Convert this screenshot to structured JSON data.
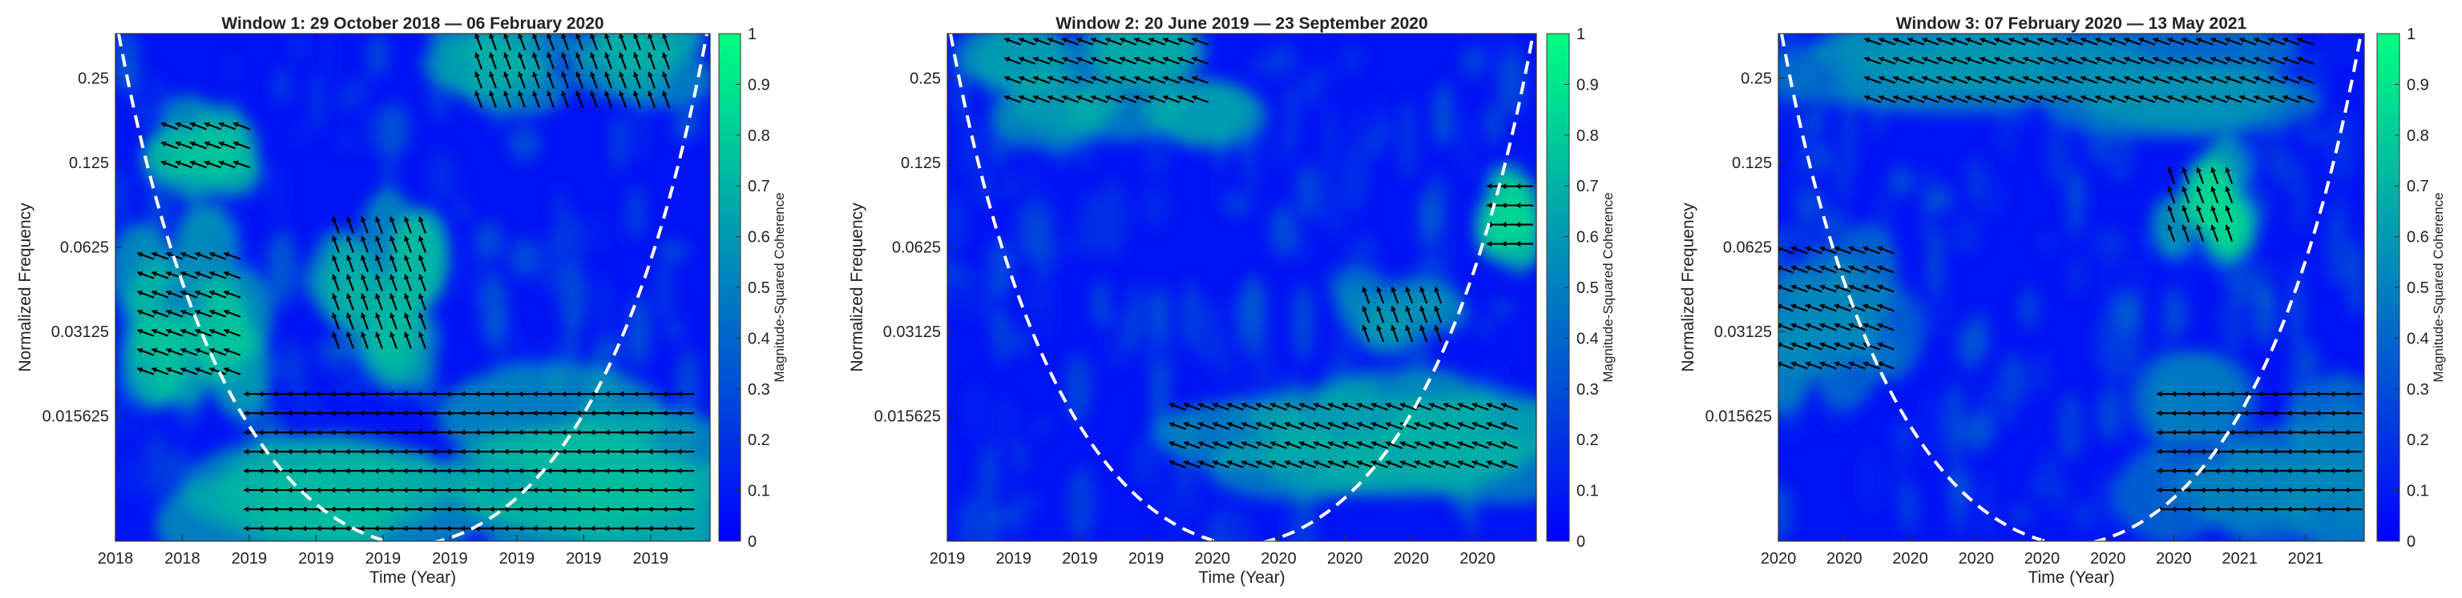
{
  "chart_data": [
    {
      "type": "heatmap",
      "title": "Window 1: 29 October 2018 — 06 February 2020",
      "xlabel": "Time (Year)",
      "ylabel": "Normalized Frequency",
      "x_tick_labels": [
        "2018",
        "2018",
        "2019",
        "2019",
        "2019",
        "2019",
        "2019",
        "2019",
        "2019"
      ],
      "y_tick_labels": [
        "0.25",
        "0.125",
        "0.0625",
        "0.03125",
        "0.015625"
      ],
      "y_tick_values": [
        0.25,
        0.125,
        0.0625,
        0.03125,
        0.015625
      ],
      "ylim": [
        0.0056,
        0.36
      ],
      "colorbar": {
        "label": "Magnitude-Squared Coherence",
        "ticks": [
          "0",
          "0.1",
          "0.2",
          "0.3",
          "0.4",
          "0.5",
          "0.6",
          "0.7",
          "0.8",
          "0.9",
          "1"
        ],
        "range": [
          0,
          1
        ]
      },
      "cone_of_influence": "white dashed",
      "high_coherence_regions": [
        {
          "x": [
            0.04,
            0.22
          ],
          "y": [
            0.022,
            0.062
          ],
          "level": 0.8
        },
        {
          "x": [
            0.36,
            0.52
          ],
          "y": [
            0.028,
            0.08
          ],
          "level": 0.75
        },
        {
          "x": [
            0.22,
            0.96
          ],
          "y": [
            0.0062,
            0.02
          ],
          "level": 0.75
        },
        {
          "x": [
            0.08,
            0.22
          ],
          "y": [
            0.11,
            0.18
          ],
          "level": 0.8
        },
        {
          "x": [
            0.6,
            0.93
          ],
          "y": [
            0.2,
            0.36
          ],
          "level": 0.7
        }
      ]
    },
    {
      "type": "heatmap",
      "title": "Window 2: 20 June 2019 — 23 September 2020",
      "xlabel": "Time (Year)",
      "ylabel": "Normalized Frequency",
      "x_tick_labels": [
        "2019",
        "2019",
        "2019",
        "2019",
        "2020",
        "2020",
        "2020",
        "2020",
        "2020"
      ],
      "y_tick_labels": [
        "0.25",
        "0.125",
        "0.0625",
        "0.03125",
        "0.015625"
      ],
      "y_tick_values": [
        0.25,
        0.125,
        0.0625,
        0.03125,
        0.015625
      ],
      "ylim": [
        0.0056,
        0.36
      ],
      "colorbar": {
        "label": "Magnitude-Squared Coherence",
        "ticks": [
          "0",
          "0.1",
          "0.2",
          "0.3",
          "0.4",
          "0.5",
          "0.6",
          "0.7",
          "0.8",
          "0.9",
          "1"
        ],
        "range": [
          0,
          1
        ]
      },
      "cone_of_influence": "white dashed",
      "high_coherence_regions": [
        {
          "x": [
            0.38,
            0.97
          ],
          "y": [
            0.009,
            0.018
          ],
          "level": 0.7
        },
        {
          "x": [
            0.7,
            0.85
          ],
          "y": [
            0.03,
            0.045
          ],
          "level": 0.6
        },
        {
          "x": [
            0.92,
            1.0
          ],
          "y": [
            0.06,
            0.11
          ],
          "level": 0.85
        },
        {
          "x": [
            0.1,
            0.45
          ],
          "y": [
            0.18,
            0.36
          ],
          "level": 0.7
        }
      ]
    },
    {
      "type": "heatmap",
      "title": "Window 3: 07 February 2020 — 13 May 2021",
      "xlabel": "Time (Year)",
      "ylabel": "Normalized Frequency",
      "x_tick_labels": [
        "2020",
        "2020",
        "2020",
        "2020",
        "2020",
        "2020",
        "2020",
        "2021",
        "2021"
      ],
      "y_tick_labels": [
        "0.25",
        "0.125",
        "0.0625",
        "0.03125",
        "0.015625"
      ],
      "y_tick_values": [
        0.25,
        0.125,
        0.0625,
        0.03125,
        0.015625
      ],
      "ylim": [
        0.0056,
        0.36
      ],
      "colorbar": {
        "label": "Magnitude-Squared Coherence",
        "ticks": [
          "0",
          "0.1",
          "0.2",
          "0.3",
          "0.4",
          "0.5",
          "0.6",
          "0.7",
          "0.8",
          "0.9",
          "1"
        ],
        "range": [
          0,
          1
        ]
      },
      "cone_of_influence": "white dashed",
      "high_coherence_regions": [
        {
          "x": [
            0.0,
            0.2
          ],
          "y": [
            0.022,
            0.065
          ],
          "level": 0.55
        },
        {
          "x": [
            0.66,
            0.78
          ],
          "y": [
            0.062,
            0.12
          ],
          "level": 0.85
        },
        {
          "x": [
            0.65,
            1.0
          ],
          "y": [
            0.007,
            0.02
          ],
          "level": 0.55
        },
        {
          "x": [
            0.15,
            0.9
          ],
          "y": [
            0.18,
            0.36
          ],
          "level": 0.6
        }
      ]
    }
  ]
}
